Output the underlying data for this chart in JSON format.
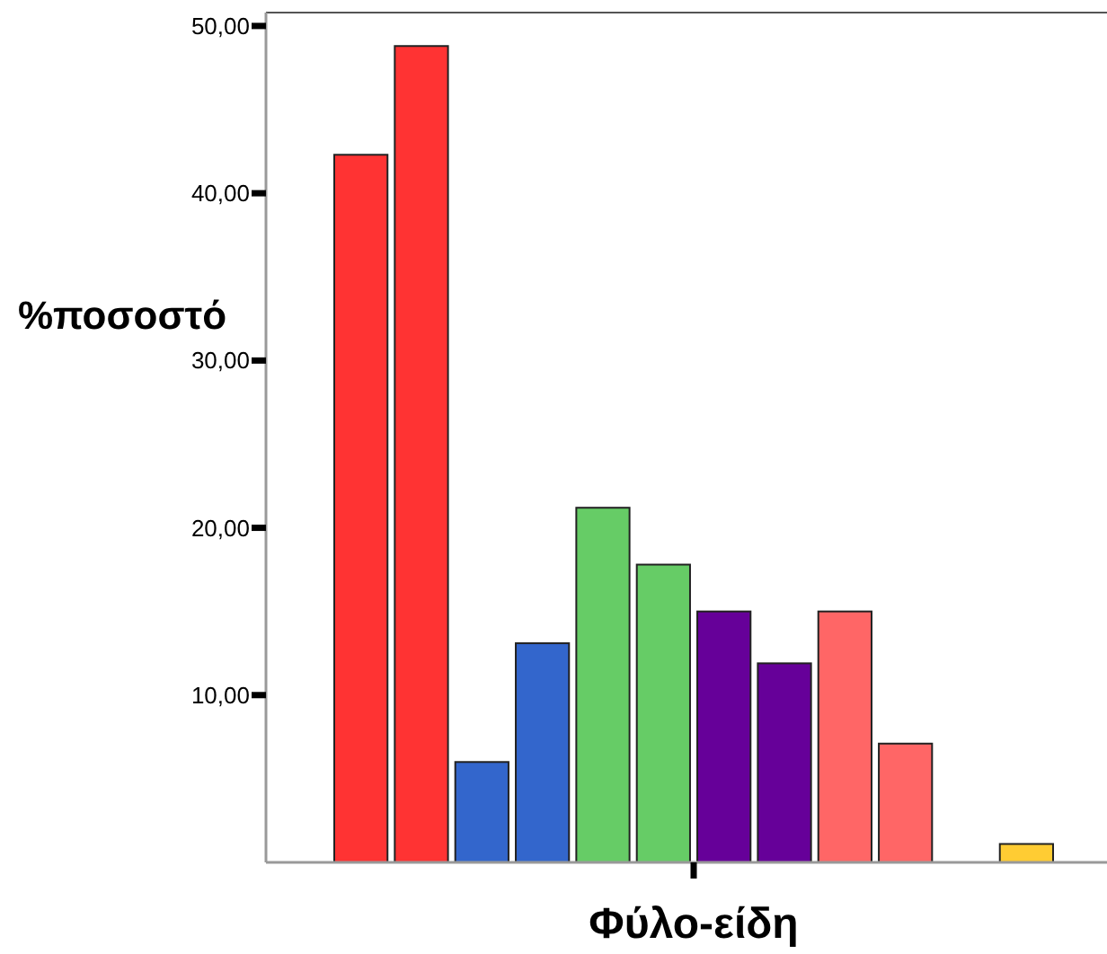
{
  "chart_data": {
    "type": "bar",
    "xlabel": "Φύλο-είδη",
    "ylabel": "%ποσοστό",
    "categories": [
      null
    ],
    "series": [
      {
        "color": "#ff3333",
        "values": [
          42.3
        ]
      },
      {
        "color": "#ff3333",
        "values": [
          48.8
        ]
      },
      {
        "color": "#3366cc",
        "values": [
          6.0
        ]
      },
      {
        "color": "#3366cc",
        "values": [
          13.1
        ]
      },
      {
        "color": "#66cc66",
        "values": [
          21.2
        ]
      },
      {
        "color": "#66cc66",
        "values": [
          17.8
        ]
      },
      {
        "color": "#660099",
        "values": [
          15.0
        ]
      },
      {
        "color": "#660099",
        "values": [
          11.9
        ]
      },
      {
        "color": "#ff6666",
        "values": [
          15.0
        ]
      },
      {
        "color": "#ff6666",
        "values": [
          7.1
        ]
      },
      {
        "values": [
          null
        ]
      },
      {
        "color": "#ffcc33",
        "values": [
          1.1
        ]
      }
    ],
    "ylim": [
      0,
      50.8
    ],
    "yticks": [
      {
        "value": 10,
        "label": "10,00"
      },
      {
        "value": 20,
        "label": "20,00"
      },
      {
        "value": 30,
        "label": "30,00"
      },
      {
        "value": 40,
        "label": "40,00"
      },
      {
        "value": 50,
        "label": "50,00"
      }
    ],
    "grid": false
  }
}
